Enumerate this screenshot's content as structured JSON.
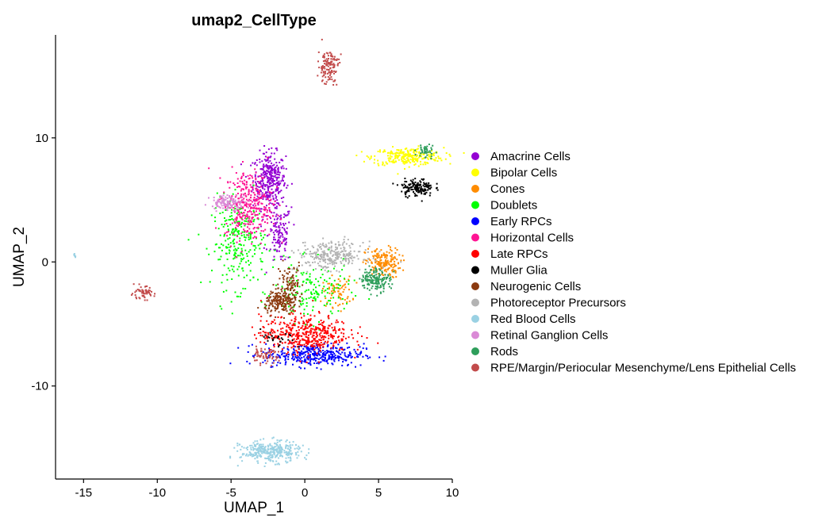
{
  "chart_data": {
    "type": "scatter",
    "title": "umap2_CellType",
    "xlabel": "UMAP_1",
    "ylabel": "UMAP_2",
    "xlim": [
      -16.9,
      10
    ],
    "ylim": [
      -17.5,
      18.3
    ],
    "x_ticks": [
      -15,
      -10,
      -5,
      0,
      5,
      10
    ],
    "y_ticks": [
      -10,
      0,
      10
    ],
    "grid": false,
    "legend_position": "right",
    "series": [
      {
        "name": "Amacrine Cells",
        "color": "#9400D3",
        "clusters": [
          {
            "cx": -2.4,
            "cy": 6.6,
            "sx": 0.55,
            "sy": 1.1,
            "n": 340
          },
          {
            "cx": -1.7,
            "cy": 2.2,
            "sx": 0.4,
            "sy": 1.2,
            "n": 130
          }
        ]
      },
      {
        "name": "Bipolar Cells",
        "color": "#FFFF00",
        "clusters": [
          {
            "cx": 7.0,
            "cy": 8.5,
            "sx": 1.2,
            "sy": 0.35,
            "n": 260
          }
        ]
      },
      {
        "name": "Cones",
        "color": "#FF8C00",
        "clusters": [
          {
            "cx": 5.3,
            "cy": -0.1,
            "sx": 0.6,
            "sy": 0.6,
            "n": 180
          },
          {
            "cx": 2.2,
            "cy": -2.4,
            "sx": 0.5,
            "sy": 0.6,
            "n": 70
          }
        ]
      },
      {
        "name": "Doublets",
        "color": "#00FF00",
        "clusters": [
          {
            "cx": -4.5,
            "cy": 1.5,
            "sx": 0.9,
            "sy": 1.8,
            "n": 260
          },
          {
            "cx": 0.5,
            "cy": -2.5,
            "sx": 1.3,
            "sy": 1.2,
            "n": 160
          }
        ]
      },
      {
        "name": "Early RPCs",
        "color": "#0000FF",
        "clusters": [
          {
            "cx": 0.6,
            "cy": -7.5,
            "sx": 1.7,
            "sy": 0.45,
            "n": 380
          }
        ]
      },
      {
        "name": "Horizontal Cells",
        "color": "#FF1493",
        "clusters": [
          {
            "cx": -3.8,
            "cy": 4.6,
            "sx": 0.8,
            "sy": 1.4,
            "n": 330
          }
        ]
      },
      {
        "name": "Late RPCs",
        "color": "#FF0000",
        "clusters": [
          {
            "cx": 0.0,
            "cy": -5.8,
            "sx": 1.5,
            "sy": 0.75,
            "n": 450
          }
        ]
      },
      {
        "name": "Muller Glia",
        "color": "#000000",
        "clusters": [
          {
            "cx": 7.6,
            "cy": 6.0,
            "sx": 0.55,
            "sy": 0.35,
            "n": 150
          },
          {
            "cx": -1.8,
            "cy": -6.3,
            "sx": 0.6,
            "sy": 0.4,
            "n": 25
          }
        ]
      },
      {
        "name": "Neurogenic Cells",
        "color": "#8B3A0F",
        "clusters": [
          {
            "cx": -1.6,
            "cy": -3.3,
            "sx": 0.55,
            "sy": 0.45,
            "n": 190
          },
          {
            "cx": -1.0,
            "cy": -1.6,
            "sx": 0.45,
            "sy": 0.8,
            "n": 90
          }
        ]
      },
      {
        "name": "Photoreceptor Precursors",
        "color": "#B3B3B3",
        "clusters": [
          {
            "cx": 1.8,
            "cy": 0.5,
            "sx": 1.1,
            "sy": 0.55,
            "n": 280
          }
        ]
      },
      {
        "name": "Red Blood Cells",
        "color": "#9AD1E3",
        "clusters": [
          {
            "cx": -2.3,
            "cy": -15.3,
            "sx": 1.0,
            "sy": 0.42,
            "n": 330
          },
          {
            "cx": -15.6,
            "cy": 0.5,
            "sx": 0.05,
            "sy": 0.1,
            "n": 6
          }
        ]
      },
      {
        "name": "Retinal Ganglion Cells",
        "color": "#DA8AD6",
        "clusters": [
          {
            "cx": -5.2,
            "cy": 4.8,
            "sx": 0.6,
            "sy": 0.3,
            "n": 120
          }
        ]
      },
      {
        "name": "Rods",
        "color": "#2E9E5B",
        "clusters": [
          {
            "cx": 4.8,
            "cy": -1.4,
            "sx": 0.5,
            "sy": 0.45,
            "n": 160
          },
          {
            "cx": 8.2,
            "cy": 8.9,
            "sx": 0.3,
            "sy": 0.3,
            "n": 40
          }
        ]
      },
      {
        "name": "RPE/Margin/Periocular Mesenchyme/Lens Epithelial Cells",
        "color": "#C24B4B",
        "clusters": [
          {
            "cx": 1.6,
            "cy": 15.8,
            "sx": 0.35,
            "sy": 0.7,
            "n": 130
          },
          {
            "cx": -11.0,
            "cy": -2.5,
            "sx": 0.4,
            "sy": 0.25,
            "n": 60
          },
          {
            "cx": -2.8,
            "cy": -7.6,
            "sx": 0.5,
            "sy": 0.3,
            "n": 60
          }
        ]
      }
    ]
  }
}
